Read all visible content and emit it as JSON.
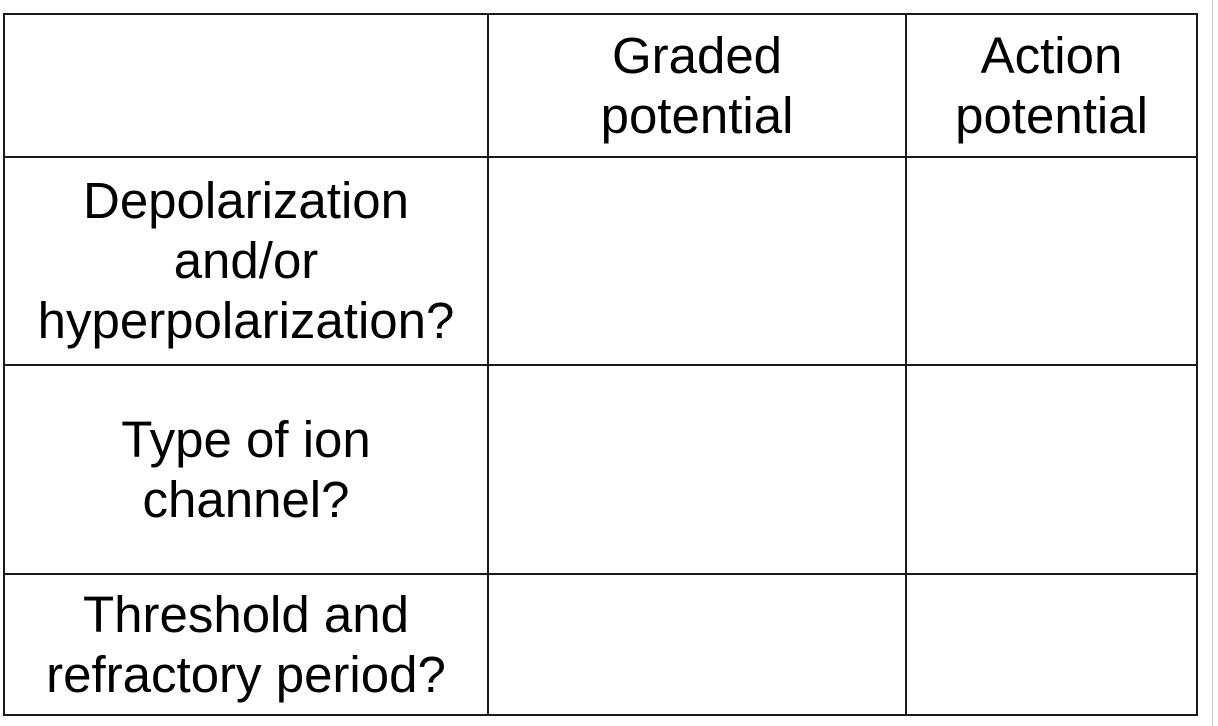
{
  "table": {
    "header": {
      "corner": "",
      "columns": [
        "Graded\npotential",
        "Action\npotential"
      ]
    },
    "rows": [
      {
        "label": "Depolarization\nand/or\nhyperpolarization?",
        "cells": [
          "",
          ""
        ]
      },
      {
        "label": "Type of ion\nchannel?",
        "cells": [
          "",
          ""
        ]
      },
      {
        "label": "Threshold and\nrefractory period?",
        "cells": [
          "",
          ""
        ]
      }
    ]
  }
}
